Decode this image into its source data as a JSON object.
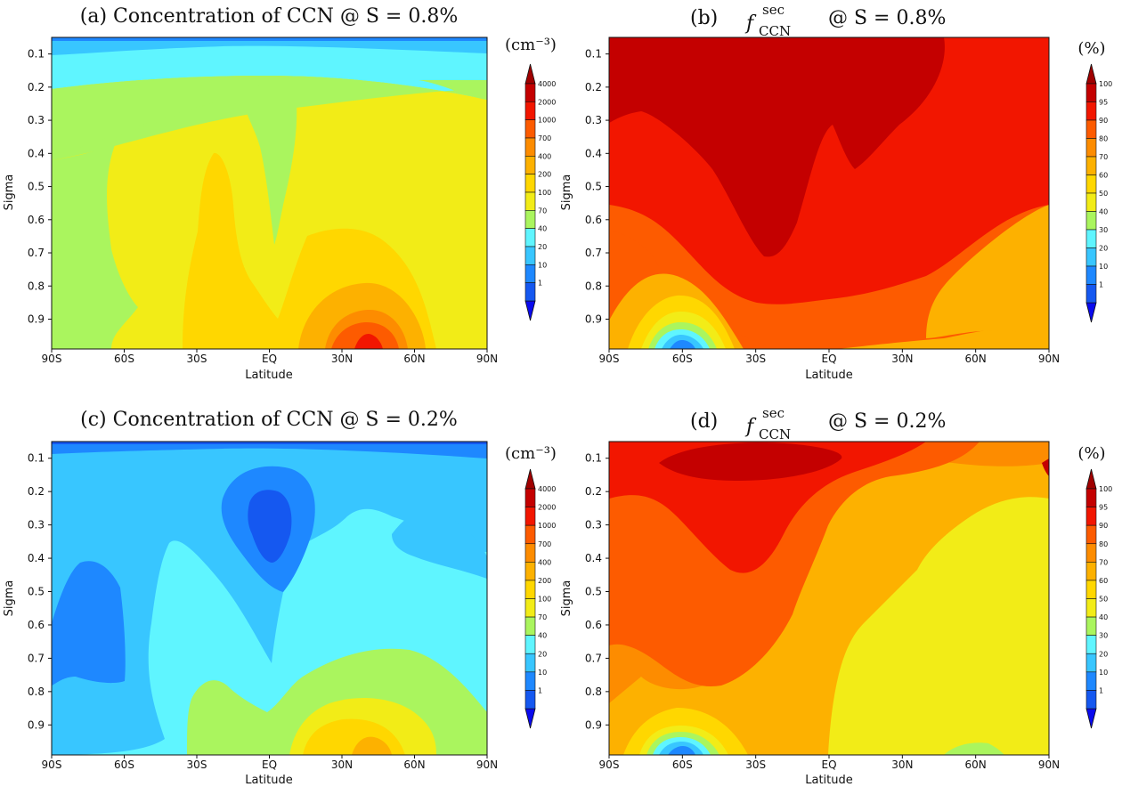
{
  "levels": {
    "conc": [
      "1",
      "10",
      "20",
      "40",
      "70",
      "100",
      "200",
      "400",
      "700",
      "1000",
      "2000",
      "4000"
    ],
    "frac": [
      "1",
      "10",
      "20",
      "30",
      "40",
      "50",
      "60",
      "70",
      "80",
      "90",
      "95",
      "100"
    ]
  },
  "palette": [
    "#0a0aee",
    "#1558f0",
    "#1e88ff",
    "#38c6ff",
    "#5ff5ff",
    "#aaf55e",
    "#f2ec17",
    "#ffd700",
    "#fdb100",
    "#fd8c00",
    "#fd5b00",
    "#f21600",
    "#c40000",
    "#a00000"
  ],
  "yticks": [
    "0.1",
    "0.2",
    "0.3",
    "0.4",
    "0.5",
    "0.6",
    "0.7",
    "0.8",
    "0.9"
  ],
  "xticks": [
    "90S",
    "60S",
    "30S",
    "EQ",
    "30N",
    "60N",
    "90N"
  ],
  "panels": {
    "a": {
      "title": "(a) Concentration of CCN @ S = 0.8%",
      "unit": "(cm⁻³)",
      "xlabel": "Latitude",
      "ylabel": "Sigma"
    },
    "b": {
      "letter": "(b)",
      "f": "f",
      "sup": "sec",
      "sub": "CCN",
      "rest": "@ S = 0.8%",
      "unit": "(%)",
      "xlabel": "Latitude",
      "ylabel": "Sigma"
    },
    "c": {
      "title": "(c) Concentration of CCN @ S = 0.2%",
      "unit": "(cm⁻³)",
      "xlabel": "Latitude",
      "ylabel": "Sigma"
    },
    "d": {
      "letter": "(d)",
      "f": "f",
      "sup": "sec",
      "sub": "CCN",
      "rest": "@ S = 0.2%",
      "unit": "(%)",
      "xlabel": "Latitude",
      "ylabel": "Sigma"
    }
  },
  "chart_data": [
    {
      "id": "a",
      "type": "heatmap",
      "title": "(a) Concentration of CCN @ S = 0.8%",
      "xlabel": "Latitude",
      "ylabel": "Sigma",
      "xlim": [
        -90,
        90
      ],
      "ylim": [
        0.05,
        1.0
      ],
      "yaxis": "inverted",
      "colorbar_unit": "cm⁻³",
      "colorbar_levels": [
        1,
        10,
        20,
        40,
        70,
        100,
        200,
        400,
        700,
        1000,
        2000,
        4000
      ],
      "regions": [
        {
          "desc": "near 0.05",
          "range": "20-40",
          "color": "#38c6ff"
        },
        {
          "desc": "0.07-0.15 band",
          "range": "40-70",
          "color": "#5ff5ff"
        },
        {
          "desc": "90S-60S column and equatorial plume",
          "range": "70-100",
          "color": "#aaf55e"
        },
        {
          "desc": "bulk troposphere",
          "range": "100-200",
          "color": "#f2ec17"
        },
        {
          "desc": "30S plume and 10N-70N lower troposphere",
          "range": "200-400",
          "color": "#ffd700"
        },
        {
          "desc": "30N-50N near surface",
          "range": "400-2000",
          "color": "#f21600"
        }
      ]
    },
    {
      "id": "b",
      "type": "heatmap",
      "title": "(b) f_CCN^sec @ S = 0.8%",
      "xlabel": "Latitude",
      "ylabel": "Sigma",
      "xlim": [
        -90,
        90
      ],
      "ylim": [
        0.05,
        1.0
      ],
      "yaxis": "inverted",
      "colorbar_unit": "%",
      "colorbar_levels": [
        1,
        10,
        20,
        30,
        40,
        50,
        60,
        70,
        80,
        90,
        95,
        100
      ],
      "regions": [
        {
          "desc": "upper troposphere 75S-50N",
          "range": "95-100",
          "color": "#c40000"
        },
        {
          "desc": "mid troposphere",
          "range": "90-95",
          "color": "#f21600"
        },
        {
          "desc": "lower troposphere",
          "range": "80-90",
          "color": "#fd5b00"
        },
        {
          "desc": "NH near surface",
          "range": "60-80",
          "color": "#fdb100"
        },
        {
          "desc": "55S near surface minimum",
          "range": "1-50",
          "color": "#38c6ff"
        }
      ]
    },
    {
      "id": "c",
      "type": "heatmap",
      "title": "(c) Concentration of CCN @ S = 0.2%",
      "xlabel": "Latitude",
      "ylabel": "Sigma",
      "xlim": [
        -90,
        90
      ],
      "ylim": [
        0.05,
        1.0
      ],
      "yaxis": "inverted",
      "colorbar_unit": "cm⁻³",
      "colorbar_levels": [
        1,
        10,
        20,
        40,
        70,
        100,
        200,
        400,
        700,
        1000,
        2000,
        4000
      ],
      "regions": [
        {
          "desc": "near 0.05",
          "range": "10-20",
          "color": "#1558f0"
        },
        {
          "desc": "upper troposphere",
          "range": "20-40",
          "color": "#38c6ff"
        },
        {
          "desc": "equatorial upper minimum",
          "range": "10-20",
          "color": "#1558f0"
        },
        {
          "desc": "bulk lower troposphere",
          "range": "40-70",
          "color": "#5ff5ff"
        },
        {
          "desc": "NH lower troposphere",
          "range": "70-200",
          "color": "#f2ec17"
        },
        {
          "desc": "35N near surface",
          "range": "200-400",
          "color": "#fdb100"
        }
      ]
    },
    {
      "id": "d",
      "type": "heatmap",
      "title": "(d) f_CCN^sec @ S = 0.2%",
      "xlabel": "Latitude",
      "ylabel": "Sigma",
      "xlim": [
        -90,
        90
      ],
      "ylim": [
        0.05,
        1.0
      ],
      "yaxis": "inverted",
      "colorbar_unit": "%",
      "colorbar_levels": [
        1,
        10,
        20,
        30,
        40,
        50,
        60,
        70,
        80,
        90,
        95,
        100
      ],
      "regions": [
        {
          "desc": "top near 50S-EQ",
          "range": "95-100",
          "color": "#c40000"
        },
        {
          "desc": "upper and mid troposphere SH",
          "range": "90-95",
          "color": "#f21600"
        },
        {
          "desc": "middle band",
          "range": "80-90",
          "color": "#fd5b00"
        },
        {
          "desc": "mid troposphere NH",
          "range": "70-80",
          "color": "#fd8c00"
        },
        {
          "desc": "lower troposphere NH",
          "range": "60-70",
          "color": "#fdb100"
        },
        {
          "desc": "NH near surface",
          "range": "50-60",
          "color": "#f2ec17"
        },
        {
          "desc": "55S near surface minimum",
          "range": "1-50",
          "color": "#38c6ff"
        }
      ]
    }
  ]
}
